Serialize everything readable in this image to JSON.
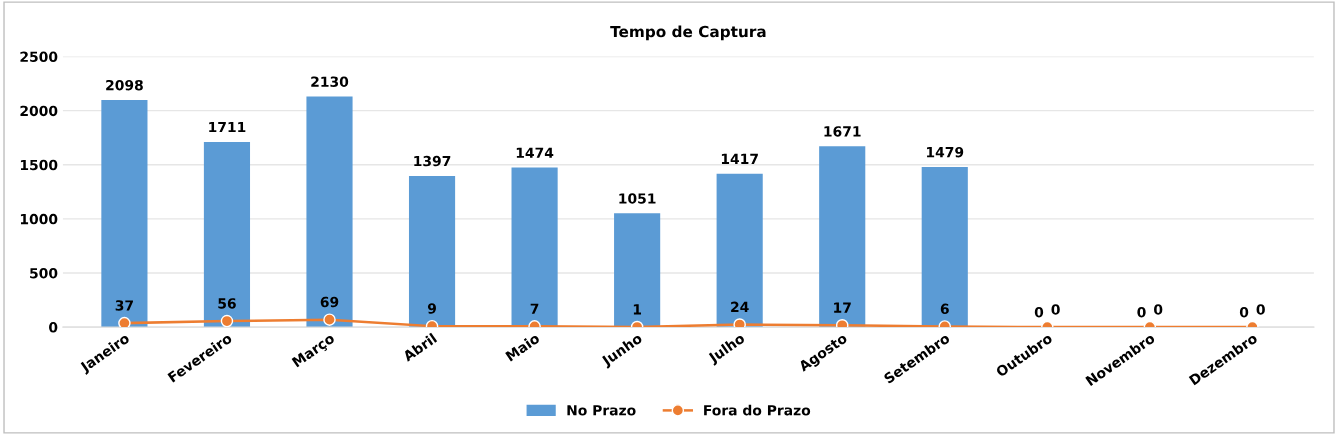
{
  "chart_data": {
    "type": "bar",
    "title": "Tempo de Captura",
    "categories": [
      "Janeiro",
      "Fevereiro",
      "Março",
      "Abril",
      "Maio",
      "Junho",
      "Julho",
      "Agosto",
      "Setembro",
      "Outubro",
      "Novembro",
      "Dezembro"
    ],
    "series": [
      {
        "name": "No Prazo",
        "color": "#5b9bd5",
        "values": [
          2098,
          1711,
          2130,
          1397,
          1474,
          1051,
          1417,
          1671,
          1479,
          0,
          0,
          0
        ]
      },
      {
        "name": "Fora do Prazo",
        "type": "line",
        "color": "#ed7d31",
        "marker": "circle",
        "values": [
          37,
          56,
          69,
          9,
          7,
          1,
          24,
          17,
          6,
          0,
          0,
          0
        ]
      }
    ],
    "ylim": [
      0,
      2500
    ],
    "yticks": [
      0,
      500,
      1000,
      1500,
      2000,
      2500
    ],
    "grid": "y",
    "legend": "bottom",
    "data_labels": true
  }
}
